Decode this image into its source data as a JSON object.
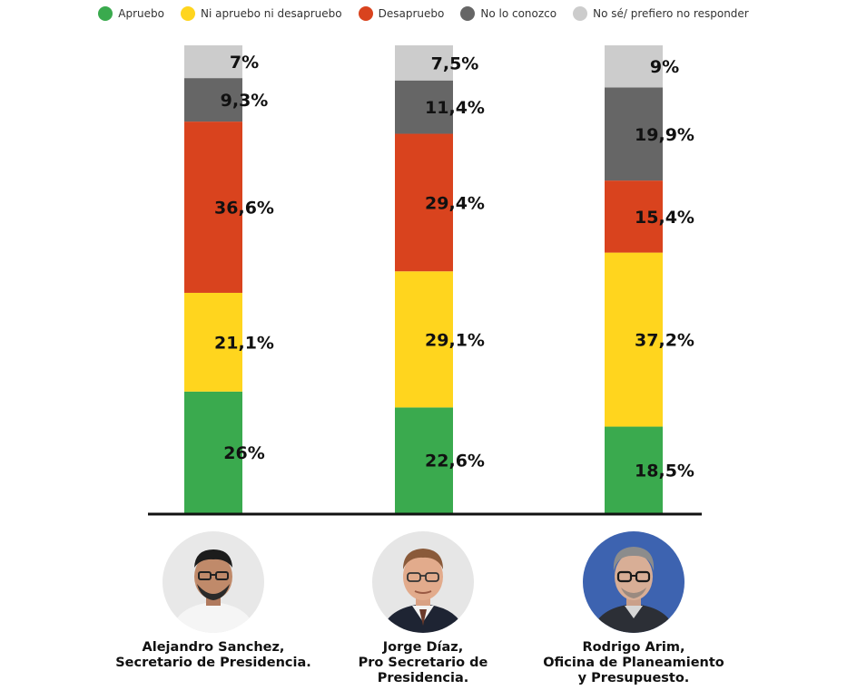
{
  "legend": [
    {
      "label": "Apruebo",
      "color": "#3aaa4e"
    },
    {
      "label": "Ni apruebo ni desapruebo",
      "color": "#ffd51e"
    },
    {
      "label": "Desapruebo",
      "color": "#d9431e"
    },
    {
      "label": "No lo conozco",
      "color": "#666666"
    },
    {
      "label": "No sé/ prefiero no responder",
      "color": "#cccccc"
    }
  ],
  "chart_data": {
    "type": "bar",
    "stacked": true,
    "title": "",
    "xlabel": "",
    "ylabel": "",
    "ylim": [
      0,
      100
    ],
    "grid": false,
    "legend_position": "top",
    "categories": [
      "Alejandro Sanchez, Secretario de Presidencia.",
      "Jorge Díaz, Pro Secretario de Presidencia.",
      "Rodrigo Arim, Oficina de Planeamiento y Presupuesto."
    ],
    "series": [
      {
        "name": "Apruebo",
        "color": "#3aaa4e",
        "values": [
          26,
          22.6,
          18.5
        ],
        "labels": [
          "26%",
          "22,6%",
          "18,5%"
        ]
      },
      {
        "name": "Ni apruebo ni desapruebo",
        "color": "#ffd51e",
        "values": [
          21.1,
          29.1,
          37.2
        ],
        "labels": [
          "21,1%",
          "29,1%",
          "37,2%"
        ]
      },
      {
        "name": "Desapruebo",
        "color": "#d9431e",
        "values": [
          36.6,
          29.4,
          15.4
        ],
        "labels": [
          "36,6%",
          "29,4%",
          "15,4%"
        ]
      },
      {
        "name": "No lo conozco",
        "color": "#666666",
        "values": [
          9.3,
          11.4,
          19.9
        ],
        "labels": [
          "9,3%",
          "11,4%",
          "19,9%"
        ]
      },
      {
        "name": "No sé/ prefiero no responder",
        "color": "#cccccc",
        "values": [
          7,
          7.5,
          9
        ],
        "labels": [
          "7%",
          "7,5%",
          "9%"
        ]
      }
    ]
  },
  "people": [
    {
      "name_line1": "Alejandro Sanchez,",
      "name_line2": "Secretario de Presidencia.",
      "name_line3": ""
    },
    {
      "name_line1": "Jorge Díaz,",
      "name_line2": "Pro Secretario de",
      "name_line3": "Presidencia."
    },
    {
      "name_line1": "Rodrigo Arim,",
      "name_line2": "Oficina de Planeamiento",
      "name_line3": "y Presupuesto."
    }
  ]
}
